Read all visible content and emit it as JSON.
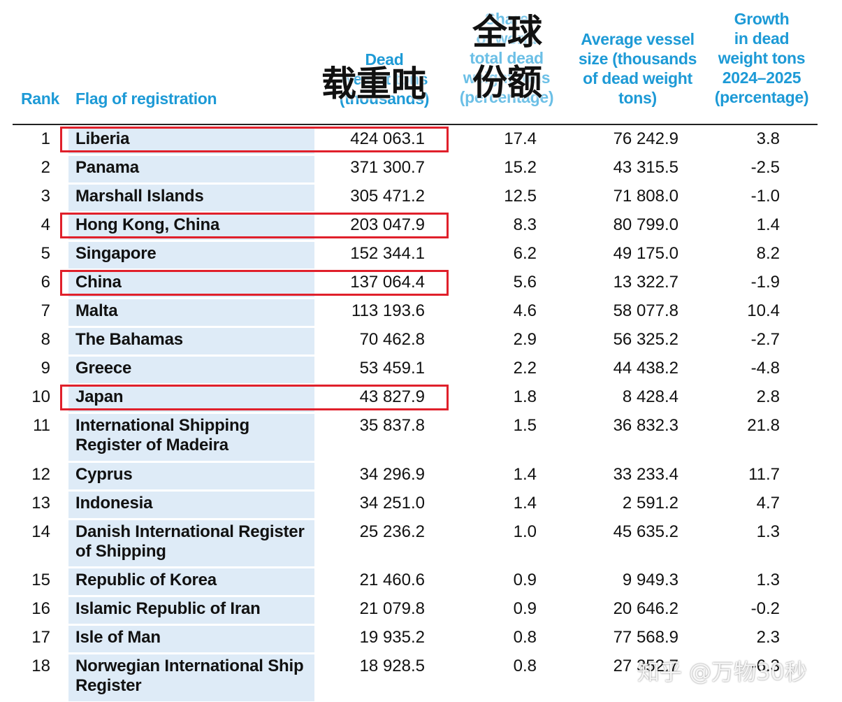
{
  "headers": {
    "rank": "Rank",
    "flag": "Flag of registration",
    "dwt": [
      "Dead",
      "weight tons",
      "(thousands)"
    ],
    "share": [
      "Share",
      "of world",
      "total dead",
      "weight tons",
      "(percentage)"
    ],
    "avg": [
      "Average vessel",
      "size (thousands",
      "of dead weight",
      "tons)"
    ],
    "growth": [
      "Growth",
      "in dead",
      "weight tons",
      "2024–2025",
      "(percentage)"
    ]
  },
  "overlay": {
    "dwt_cn": "载重吨",
    "share_cn_1": "全球",
    "share_cn_2": "份额"
  },
  "highlight_color": "#e0202b",
  "accent_color": "#1d9ad6",
  "rows": [
    {
      "rank": "1",
      "flag": [
        "Liberia"
      ],
      "dwt": "424 063.1",
      "share": "17.4",
      "avg": "76 242.9",
      "growth": "3.8",
      "highlight": true
    },
    {
      "rank": "2",
      "flag": [
        "Panama"
      ],
      "dwt": "371 300.7",
      "share": "15.2",
      "avg": "43 315.5",
      "growth": "-2.5",
      "highlight": false
    },
    {
      "rank": "3",
      "flag": [
        "Marshall Islands"
      ],
      "dwt": "305 471.2",
      "share": "12.5",
      "avg": "71 808.0",
      "growth": "-1.0",
      "highlight": false
    },
    {
      "rank": "4",
      "flag": [
        "Hong Kong, China"
      ],
      "dwt": "203 047.9",
      "share": "8.3",
      "avg": "80 799.0",
      "growth": "1.4",
      "highlight": true
    },
    {
      "rank": "5",
      "flag": [
        "Singapore"
      ],
      "dwt": "152 344.1",
      "share": "6.2",
      "avg": "49 175.0",
      "growth": "8.2",
      "highlight": false
    },
    {
      "rank": "6",
      "flag": [
        "China"
      ],
      "dwt": "137 064.4",
      "share": "5.6",
      "avg": "13 322.7",
      "growth": "-1.9",
      "highlight": true
    },
    {
      "rank": "7",
      "flag": [
        "Malta"
      ],
      "dwt": "113 193.6",
      "share": "4.6",
      "avg": "58 077.8",
      "growth": "10.4",
      "highlight": false
    },
    {
      "rank": "8",
      "flag": [
        "The Bahamas"
      ],
      "dwt": "70 462.8",
      "share": "2.9",
      "avg": "56 325.2",
      "growth": "-2.7",
      "highlight": false
    },
    {
      "rank": "9",
      "flag": [
        "Greece"
      ],
      "dwt": "53 459.1",
      "share": "2.2",
      "avg": "44 438.2",
      "growth": "-4.8",
      "highlight": false
    },
    {
      "rank": "10",
      "flag": [
        "Japan"
      ],
      "dwt": "43 827.9",
      "share": "1.8",
      "avg": "8 428.4",
      "growth": "2.8",
      "highlight": true
    },
    {
      "rank": "11",
      "flag": [
        "International  Shipping",
        "Register of Madeira"
      ],
      "dwt": "35 837.8",
      "share": "1.5",
      "avg": "36 832.3",
      "growth": "21.8",
      "highlight": false
    },
    {
      "rank": "12",
      "flag": [
        "Cyprus"
      ],
      "dwt": "34 296.9",
      "share": "1.4",
      "avg": "33 233.4",
      "growth": "11.7",
      "highlight": false
    },
    {
      "rank": "13",
      "flag": [
        "Indonesia"
      ],
      "dwt": "34 251.0",
      "share": "1.4",
      "avg": "2 591.2",
      "growth": "4.7",
      "highlight": false
    },
    {
      "rank": "14",
      "flag": [
        "Danish International Register",
        "of Shipping"
      ],
      "dwt": "25 236.2",
      "share": "1.0",
      "avg": "45 635.2",
      "growth": "1.3",
      "highlight": false
    },
    {
      "rank": "15",
      "flag": [
        "Republic of Korea"
      ],
      "dwt": "21 460.6",
      "share": "0.9",
      "avg": "9 949.3",
      "growth": "1.3",
      "highlight": false
    },
    {
      "rank": "16",
      "flag": [
        "Islamic Republic of Iran"
      ],
      "dwt": "21 079.8",
      "share": "0.9",
      "avg": "20 646.2",
      "growth": "-0.2",
      "highlight": false
    },
    {
      "rank": "17",
      "flag": [
        "Isle of Man"
      ],
      "dwt": "19 935.2",
      "share": "0.8",
      "avg": "77 568.9",
      "growth": "2.3",
      "highlight": false
    },
    {
      "rank": "18",
      "flag": [
        "Norwegian International Ship",
        "Register"
      ],
      "dwt": "18 928.5",
      "share": "0.8",
      "avg": "27 352.7",
      "growth": "-6.3",
      "highlight": false
    }
  ],
  "watermark": "知乎 @万物30秒"
}
